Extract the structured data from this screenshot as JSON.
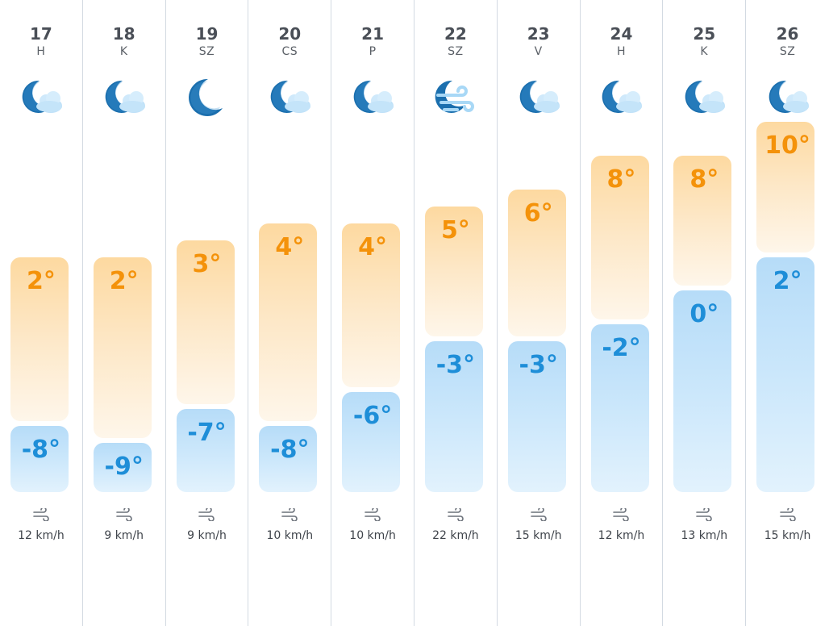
{
  "forecast": {
    "temp_range": [
      -10,
      11
    ],
    "days": [
      {
        "date": "17",
        "dow": "H",
        "icon": "moon-cloud-icon",
        "high": 2,
        "low": -8,
        "high_label": "2°",
        "low_label": "-8°",
        "wind": "12 km/h"
      },
      {
        "date": "18",
        "dow": "K",
        "icon": "moon-cloud-icon",
        "high": 2,
        "low": -9,
        "high_label": "2°",
        "low_label": "-9°",
        "wind": "9 km/h"
      },
      {
        "date": "19",
        "dow": "SZ",
        "icon": "moon-icon",
        "high": 3,
        "low": -7,
        "high_label": "3°",
        "low_label": "-7°",
        "wind": "9 km/h"
      },
      {
        "date": "20",
        "dow": "CS",
        "icon": "moon-cloud-icon",
        "high": 4,
        "low": -8,
        "high_label": "4°",
        "low_label": "-8°",
        "wind": "10 km/h"
      },
      {
        "date": "21",
        "dow": "P",
        "icon": "moon-cloud-icon",
        "high": 4,
        "low": -6,
        "high_label": "4°",
        "low_label": "-6°",
        "wind": "10 km/h"
      },
      {
        "date": "22",
        "dow": "SZ",
        "icon": "moon-wind-icon",
        "high": 5,
        "low": -3,
        "high_label": "5°",
        "low_label": "-3°",
        "wind": "22 km/h"
      },
      {
        "date": "23",
        "dow": "V",
        "icon": "moon-cloud-icon",
        "high": 6,
        "low": -3,
        "high_label": "6°",
        "low_label": "-3°",
        "wind": "15 km/h"
      },
      {
        "date": "24",
        "dow": "H",
        "icon": "moon-cloud-icon",
        "high": 8,
        "low": -2,
        "high_label": "8°",
        "low_label": "-2°",
        "wind": "12 km/h"
      },
      {
        "date": "25",
        "dow": "K",
        "icon": "moon-cloud-icon",
        "high": 8,
        "low": 0,
        "high_label": "8°",
        "low_label": "0°",
        "wind": "13 km/h"
      },
      {
        "date": "26",
        "dow": "SZ",
        "icon": "moon-cloud-icon",
        "high": 10,
        "low": 2,
        "high_label": "10°",
        "low_label": "2°",
        "wind": "15 km/h"
      }
    ]
  },
  "colors": {
    "high_text": "#f4920a",
    "low_text": "#1e8ed8",
    "moon": "#1b6fae",
    "cloud": "#bfe1f8"
  }
}
